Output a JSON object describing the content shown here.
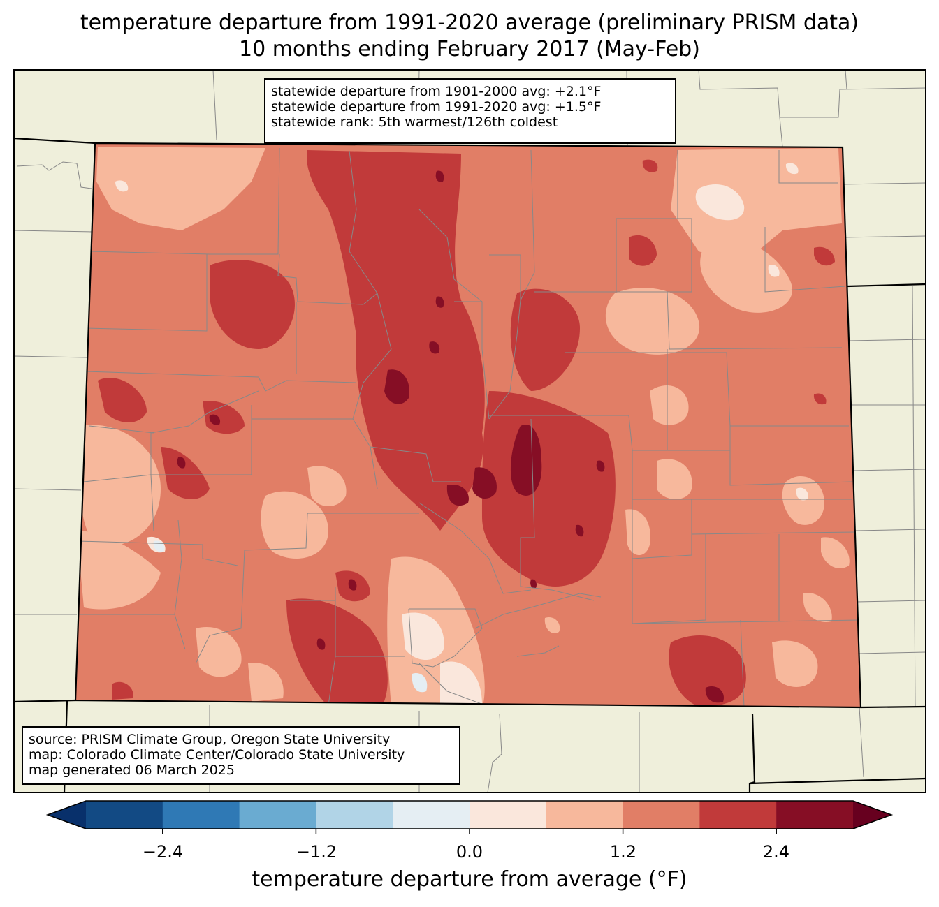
{
  "title": {
    "line1": "temperature departure from 1991-2020 average (preliminary PRISM data)",
    "line2": "10 months ending February 2017 (May-Feb)"
  },
  "stats": {
    "line1": "statewide departure from 1901-2000 avg: +2.1°F",
    "line2": "statewide departure from 1991-2020 avg: +1.5°F",
    "line3": "statewide rank: 5th warmest/126th coldest"
  },
  "source": {
    "line1": "source: PRISM Climate Group, Oregon State University",
    "line2": "map: Colorado Climate Center/Colorado State University",
    "line3": "map generated 06 March 2025"
  },
  "colorbar": {
    "label": "temperature departure from average (°F)",
    "ticks": [
      "−2.4",
      "−1.2",
      "0.0",
      "1.2",
      "2.4"
    ],
    "bins": [
      -3.0,
      -2.4,
      -1.8,
      -1.2,
      -0.6,
      0.0,
      0.6,
      1.2,
      1.8,
      2.4,
      3.0
    ],
    "colors": [
      "#08306b",
      "#124a84",
      "#2f79b5",
      "#6aabd1",
      "#b1d4e7",
      "#e5eef3",
      "#fae7dc",
      "#f7b89c",
      "#e17e66",
      "#c13a3a",
      "#860e25",
      "#67001f"
    ]
  },
  "map": {
    "land_color": "#efefdb",
    "state": "Colorado"
  }
}
